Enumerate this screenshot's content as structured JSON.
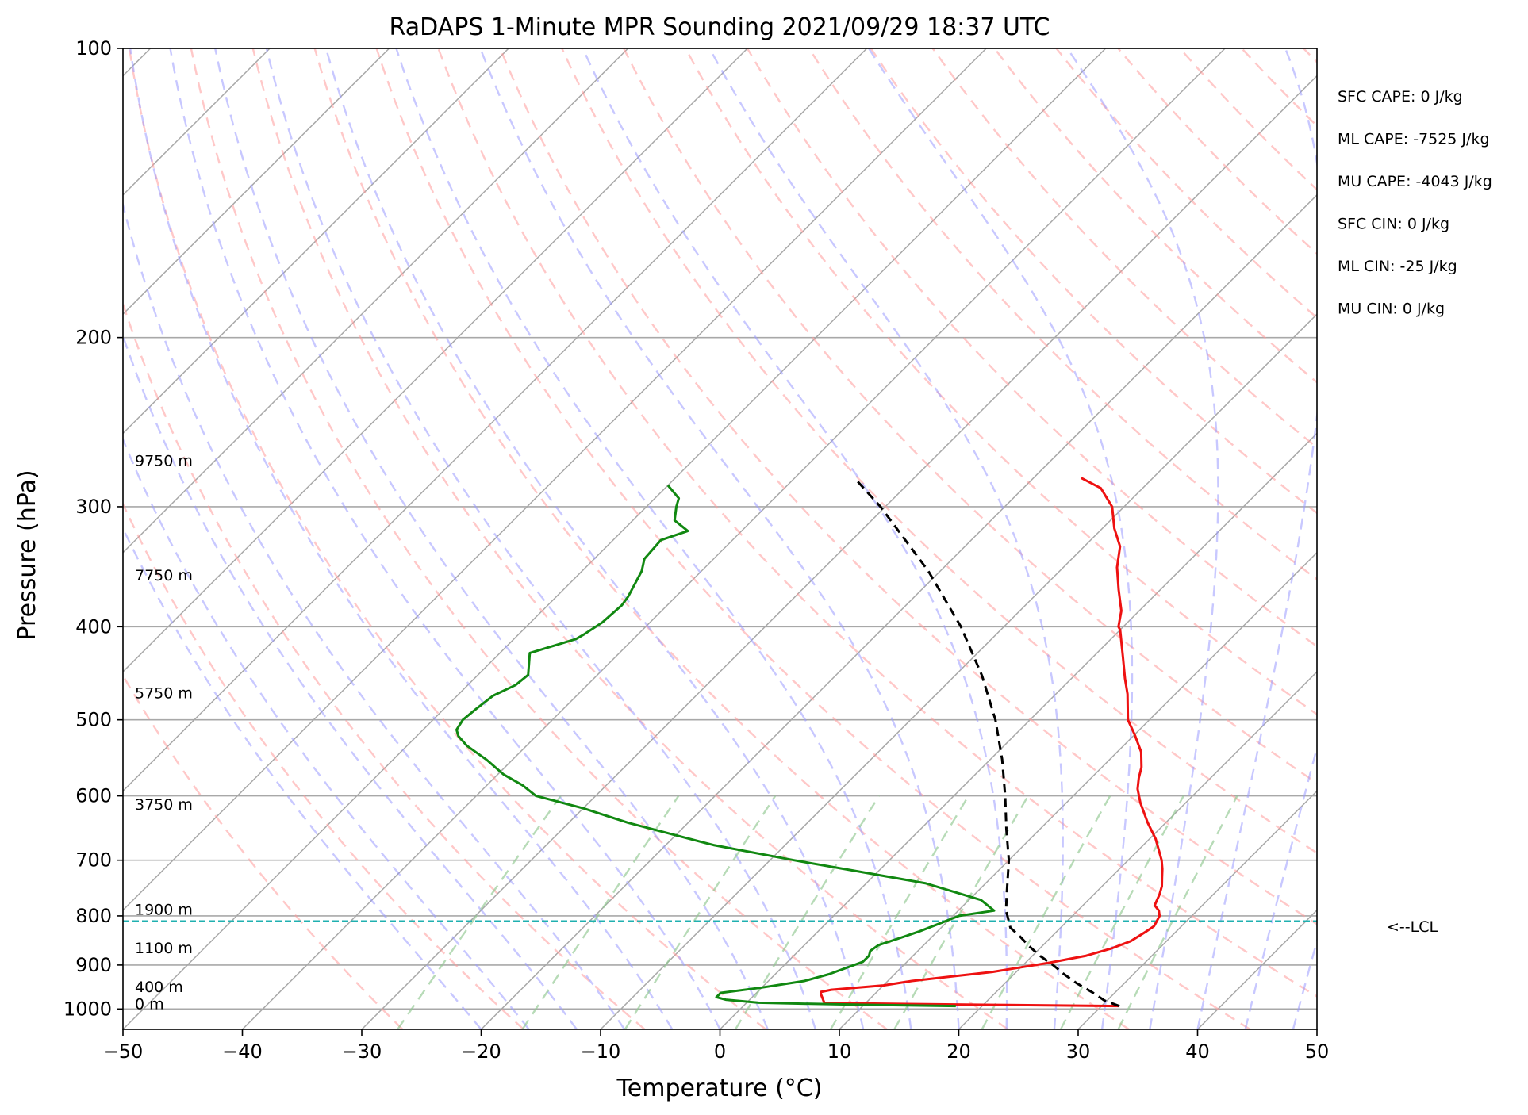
{
  "chart_data": {
    "type": "line",
    "title": "RaDAPS 1-Minute MPR Sounding 2021/09/29 18:37 UTC",
    "xlabel": "Temperature (°C)",
    "ylabel": "Pressure (hPa)",
    "xlim": [
      -50,
      50
    ],
    "ylim": [
      1050,
      100
    ],
    "y_scale": "log",
    "skew_t": true,
    "grid": true,
    "x_ticks": [
      -50,
      -40,
      -30,
      -20,
      -10,
      0,
      10,
      20,
      30,
      40,
      50
    ],
    "y_ticks": [
      100,
      200,
      300,
      400,
      500,
      600,
      700,
      800,
      900,
      1000
    ],
    "colors": {
      "temperature": "#ee1111",
      "dewpoint": "#118811",
      "parcel": "#000000",
      "lcl": "#20b0b0",
      "dry_adiabats": "#ff9a9a",
      "moist_adiabats": "#9a9aff",
      "mixing_ratio": "#90c890",
      "isotherms": "#a8a8a8"
    },
    "series": [
      {
        "key": "temperature",
        "points": [
          [
            993,
            31.5
          ],
          [
            990,
            20
          ],
          [
            987,
            10
          ],
          [
            985,
            6.5
          ],
          [
            965,
            5.5
          ],
          [
            960,
            5.3
          ],
          [
            955,
            6
          ],
          [
            945,
            10
          ],
          [
            935,
            12
          ],
          [
            925,
            15
          ],
          [
            915,
            18
          ],
          [
            905,
            20
          ],
          [
            895,
            22
          ],
          [
            880,
            24.5
          ],
          [
            865,
            26
          ],
          [
            850,
            27
          ],
          [
            830,
            27.5
          ],
          [
            820,
            27.7
          ],
          [
            810,
            27.5
          ],
          [
            800,
            27.3
          ],
          [
            790,
            26.8
          ],
          [
            780,
            26
          ],
          [
            768,
            25.7
          ],
          [
            760,
            25.5
          ],
          [
            745,
            25
          ],
          [
            730,
            24.3
          ],
          [
            715,
            23.6
          ],
          [
            700,
            22.8
          ],
          [
            665,
            20.5
          ],
          [
            640,
            18.5
          ],
          [
            610,
            16.2
          ],
          [
            590,
            14.8
          ],
          [
            575,
            14
          ],
          [
            560,
            13.3
          ],
          [
            540,
            12
          ],
          [
            518,
            10
          ],
          [
            500,
            8.2
          ],
          [
            470,
            6
          ],
          [
            453,
            4.5
          ],
          [
            430,
            2.5
          ],
          [
            403,
            0
          ],
          [
            400,
            -0.4
          ],
          [
            385,
            -1.5
          ],
          [
            366,
            -3.5
          ],
          [
            347,
            -5.5
          ],
          [
            330,
            -7
          ],
          [
            316,
            -9
          ],
          [
            300,
            -11
          ],
          [
            287,
            -13.5
          ],
          [
            280,
            -16
          ]
        ]
      },
      {
        "key": "dewpoint",
        "points": [
          [
            993,
            17.8
          ],
          [
            990,
            10
          ],
          [
            987,
            4
          ],
          [
            985,
            1
          ],
          [
            978,
            -2
          ],
          [
            972,
            -3
          ],
          [
            962,
            -3
          ],
          [
            950,
            0
          ],
          [
            935,
            3
          ],
          [
            920,
            4.5
          ],
          [
            905,
            5.5
          ],
          [
            893,
            6.3
          ],
          [
            880,
            6.3
          ],
          [
            870,
            6
          ],
          [
            858,
            6.2
          ],
          [
            845,
            7.3
          ],
          [
            830,
            8.5
          ],
          [
            815,
            9.5
          ],
          [
            800,
            10.5
          ],
          [
            790,
            13
          ],
          [
            770,
            11
          ],
          [
            740,
            5
          ],
          [
            718,
            -2
          ],
          [
            700,
            -8
          ],
          [
            675,
            -16
          ],
          [
            640,
            -25
          ],
          [
            618,
            -30
          ],
          [
            600,
            -35
          ],
          [
            585,
            -37
          ],
          [
            570,
            -39.5
          ],
          [
            550,
            -42.2
          ],
          [
            532,
            -45
          ],
          [
            520,
            -46.5
          ],
          [
            512,
            -47.2
          ],
          [
            500,
            -47.5
          ],
          [
            487,
            -47.3
          ],
          [
            472,
            -47
          ],
          [
            460,
            -46
          ],
          [
            449,
            -45.8
          ],
          [
            426,
            -47.5
          ],
          [
            412,
            -44.8
          ],
          [
            407,
            -44.5
          ],
          [
            396,
            -44
          ],
          [
            380,
            -43.8
          ],
          [
            372,
            -44
          ],
          [
            350,
            -45
          ],
          [
            340,
            -45.8
          ],
          [
            325,
            -46
          ],
          [
            318,
            -44.5
          ],
          [
            310,
            -46.5
          ],
          [
            300,
            -47.5
          ],
          [
            294,
            -48
          ],
          [
            285,
            -50
          ]
        ]
      },
      {
        "key": "parcel",
        "points": [
          [
            993,
            31.5
          ],
          [
            980,
            29.8
          ],
          [
            960,
            28
          ],
          [
            940,
            26
          ],
          [
            920,
            24.2
          ],
          [
            900,
            22.5
          ],
          [
            880,
            20.6
          ],
          [
            860,
            18.9
          ],
          [
            840,
            17.3
          ],
          [
            823,
            15.8
          ],
          [
            810,
            15.1
          ],
          [
            790,
            14
          ],
          [
            760,
            12.7
          ],
          [
            700,
            10
          ],
          [
            650,
            7.2
          ],
          [
            600,
            4.3
          ],
          [
            550,
            1
          ],
          [
            500,
            -2.9
          ],
          [
            450,
            -7.7
          ],
          [
            400,
            -13.6
          ],
          [
            350,
            -21
          ],
          [
            300,
            -30.4
          ],
          [
            280,
            -35
          ]
        ]
      }
    ],
    "lcl_pressure": 810,
    "lcl_label": "<--LCL",
    "height_labels": [
      {
        "text": "9750 m",
        "p": 272
      },
      {
        "text": "7750 m",
        "p": 358
      },
      {
        "text": "5750 m",
        "p": 475
      },
      {
        "text": "3750 m",
        "p": 620
      },
      {
        "text": "1900 m",
        "p": 798
      },
      {
        "text": "1100 m",
        "p": 875
      },
      {
        "text": "400 m",
        "p": 960
      },
      {
        "text": "0 m",
        "p": 1000
      }
    ],
    "annotations": [
      "SFC CAPE: 0 J/kg",
      "ML CAPE: -7525 J/kg",
      "MU CAPE: -4043 J/kg",
      "SFC CIN: 0 J/kg",
      "ML CIN: -25 J/kg",
      "MU CIN: 0 J/kg"
    ]
  }
}
